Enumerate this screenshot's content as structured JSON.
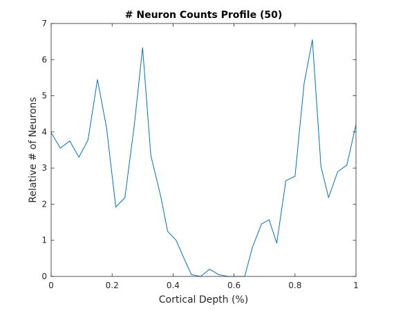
{
  "chart_data": {
    "type": "line",
    "title": "# Neuron Counts Profile (50)",
    "xlabel": "Cortical Depth (%)",
    "ylabel": "Relative # of Neurons",
    "xlim": [
      0,
      1
    ],
    "ylim": [
      0,
      7
    ],
    "xticks": [
      0,
      0.2,
      0.4,
      0.6,
      0.8,
      1
    ],
    "xtick_labels": [
      "0",
      "0.2",
      "0.4",
      "0.6",
      "0.8",
      "1"
    ],
    "yticks": [
      0,
      1,
      2,
      3,
      4,
      5,
      6,
      7
    ],
    "ytick_labels": [
      "0",
      "1",
      "2",
      "3",
      "4",
      "5",
      "6",
      "7"
    ],
    "grid": false,
    "line_color": "#0072bd",
    "series": [
      {
        "x": [
          0,
          0.03,
          0.061,
          0.091,
          0.121,
          0.152,
          0.182,
          0.212,
          0.242,
          0.273,
          0.3,
          0.327,
          0.36,
          0.382,
          0.41,
          0.44,
          0.46,
          0.49,
          0.52,
          0.55,
          0.58,
          0.61,
          0.635,
          0.66,
          0.69,
          0.715,
          0.74,
          0.77,
          0.8,
          0.83,
          0.857,
          0.885,
          0.91,
          0.94,
          0.97,
          1.0
        ],
        "y": [
          3.98,
          3.55,
          3.75,
          3.3,
          3.78,
          5.45,
          4.1,
          1.92,
          2.18,
          4.2,
          6.33,
          3.35,
          2.2,
          1.25,
          1.0,
          0.42,
          0.05,
          0.0,
          0.2,
          0.05,
          0.0,
          0.0,
          0.0,
          0.8,
          1.45,
          1.57,
          0.92,
          2.65,
          2.77,
          5.35,
          6.55,
          3.05,
          2.18,
          2.9,
          3.08,
          4.2
        ]
      }
    ]
  }
}
